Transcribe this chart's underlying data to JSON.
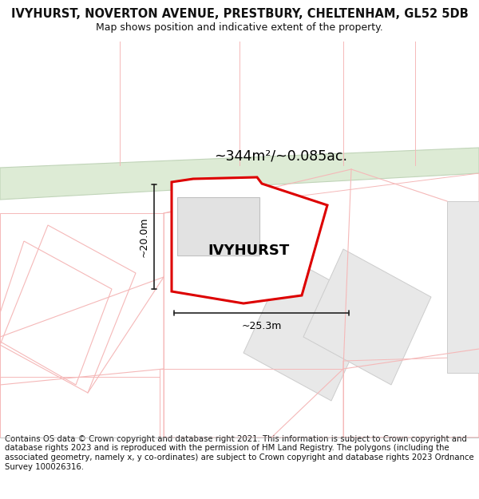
{
  "title_line1": "IVYHURST, NOVERTON AVENUE, PRESTBURY, CHELTENHAM, GL52 5DB",
  "title_line2": "Map shows position and indicative extent of the property.",
  "property_name": "IVYHURST",
  "area_text": "~344m²/~0.085ac.",
  "dim_vertical": "~20.0m",
  "dim_horizontal": "~25.3m",
  "footnote": "Contains OS data © Crown copyright and database right 2021. This information is subject to Crown copyright and database rights 2023 and is reproduced with the permission of HM Land Registry. The polygons (including the associated geometry, namely x, y co-ordinates) are subject to Crown copyright and database rights 2023 Ordnance Survey 100026316.",
  "bg_color": "#ffffff",
  "map_bg": "#ffffff",
  "road_color": "#ddebd5",
  "road_edge_color": "#c0d4b8",
  "cadastral_color": "#f5b8b8",
  "property_fill": "#ffffff",
  "property_edge": "#dd0000",
  "building_fill": "#e2e2e2",
  "building_edge": "#c0c0c0",
  "neighbor_fill": "#e8e8e8",
  "neighbor_edge": "#cccccc",
  "dim_color": "#222222",
  "title_fontsize": 10.5,
  "footnote_fontsize": 7.5
}
